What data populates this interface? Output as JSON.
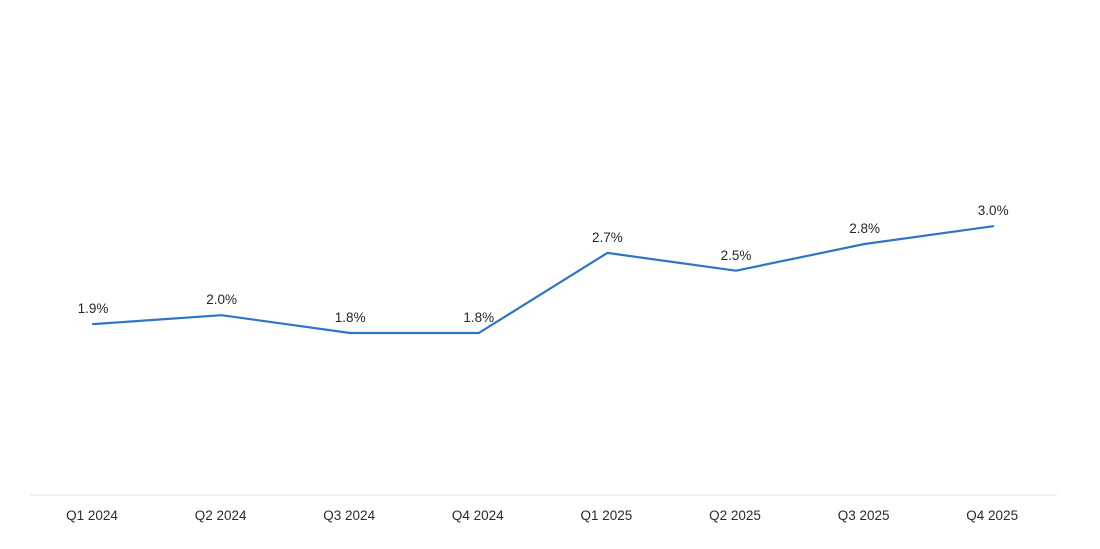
{
  "chart_data": {
    "type": "line",
    "categories": [
      "Q1 2024",
      "Q2 2024",
      "Q3 2024",
      "Q4 2024",
      "Q1 2025",
      "Q2 2025",
      "Q3 2025",
      "Q4 2025"
    ],
    "values": [
      1.9,
      2.0,
      1.8,
      1.8,
      2.7,
      2.5,
      2.8,
      3.0
    ],
    "data_labels": [
      "1.9%",
      "2.0%",
      "1.8%",
      "1.8%",
      "2.7%",
      "2.5%",
      "2.8%",
      "3.0%"
    ],
    "unit": "%",
    "title": "",
    "xlabel": "",
    "ylabel": "",
    "ylim": [
      1.4,
      3.4
    ],
    "grid": false,
    "legend": false,
    "line_color": "#2E75C6",
    "line_width": 2.2,
    "label_color": "#262626",
    "tick_label_color": "#2b2b2b",
    "axis_line_color": "#F0F0F0",
    "background_color": "#FFFFFF"
  }
}
